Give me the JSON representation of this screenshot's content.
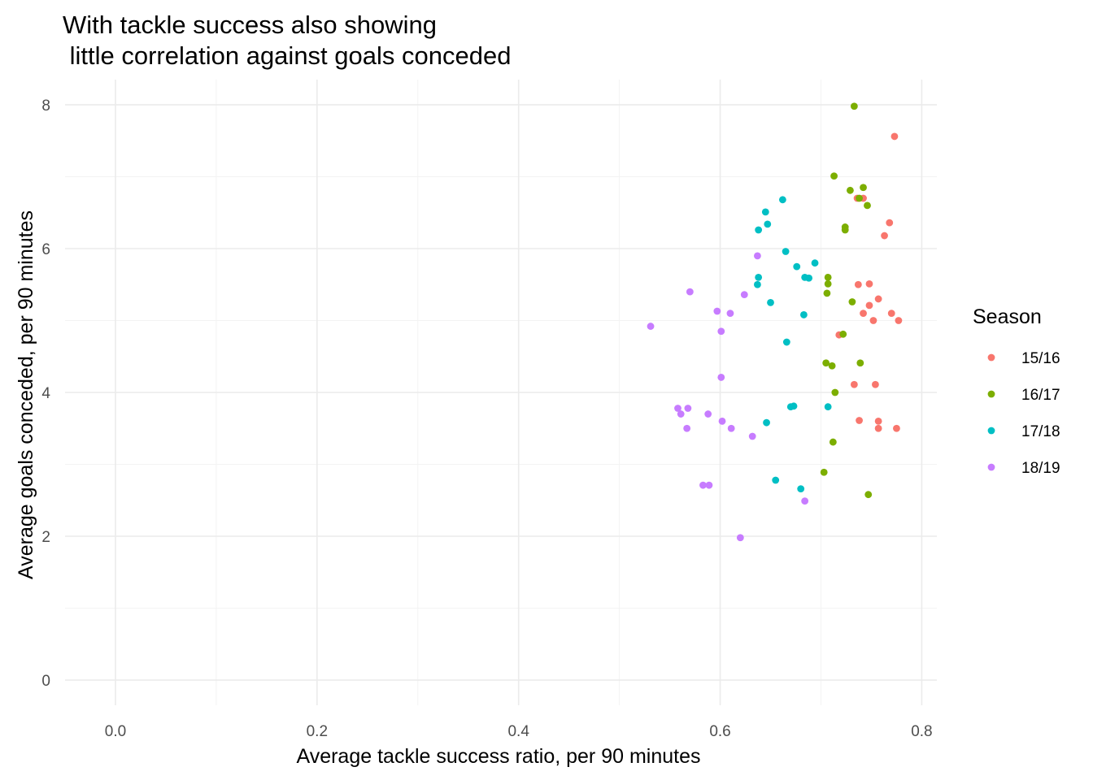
{
  "chart_data": {
    "type": "scatter",
    "title": [
      "With tackle success also showing",
      " little correlation against goals conceded"
    ],
    "xlabel": "Average tackle success ratio, per 90 minutes",
    "ylabel": "Average goals conceded, per 90 minutes",
    "xlim": [
      -0.05,
      0.815
    ],
    "ylim": [
      -0.35,
      8.35
    ],
    "x_ticks": [
      0.0,
      0.2,
      0.4,
      0.6,
      0.8
    ],
    "x_tick_labels": [
      "0.0",
      "0.2",
      "0.4",
      "0.6",
      "0.8"
    ],
    "y_ticks": [
      0,
      2,
      4,
      6,
      8
    ],
    "y_tick_labels": [
      "0",
      "2",
      "4",
      "6",
      "8"
    ],
    "grid": true,
    "legend": {
      "title": "Season",
      "position": "right"
    },
    "series": [
      {
        "name": "15/16",
        "color": "#F8766D",
        "points": [
          [
            0.773,
            7.56
          ],
          [
            0.736,
            6.7
          ],
          [
            0.742,
            6.7
          ],
          [
            0.768,
            6.36
          ],
          [
            0.763,
            6.18
          ],
          [
            0.737,
            5.5
          ],
          [
            0.748,
            5.51
          ],
          [
            0.757,
            5.3
          ],
          [
            0.748,
            5.21
          ],
          [
            0.742,
            5.1
          ],
          [
            0.752,
            5.0
          ],
          [
            0.77,
            5.1
          ],
          [
            0.777,
            5.0
          ],
          [
            0.718,
            4.8
          ],
          [
            0.733,
            4.11
          ],
          [
            0.754,
            4.11
          ],
          [
            0.738,
            3.61
          ],
          [
            0.757,
            3.6
          ],
          [
            0.757,
            3.5
          ],
          [
            0.775,
            3.5
          ]
        ]
      },
      {
        "name": "16/17",
        "color": "#7CAE00",
        "points": [
          [
            0.733,
            7.98
          ],
          [
            0.713,
            7.01
          ],
          [
            0.742,
            6.85
          ],
          [
            0.729,
            6.81
          ],
          [
            0.738,
            6.7
          ],
          [
            0.746,
            6.6
          ],
          [
            0.724,
            6.3
          ],
          [
            0.724,
            6.26
          ],
          [
            0.707,
            5.6
          ],
          [
            0.707,
            5.51
          ],
          [
            0.706,
            5.38
          ],
          [
            0.731,
            5.26
          ],
          [
            0.722,
            4.81
          ],
          [
            0.705,
            4.41
          ],
          [
            0.711,
            4.37
          ],
          [
            0.739,
            4.41
          ],
          [
            0.714,
            4.0
          ],
          [
            0.712,
            3.31
          ],
          [
            0.703,
            2.89
          ],
          [
            0.747,
            2.58
          ]
        ]
      },
      {
        "name": "17/18",
        "color": "#00BFC4",
        "points": [
          [
            0.662,
            6.68
          ],
          [
            0.645,
            6.51
          ],
          [
            0.647,
            6.34
          ],
          [
            0.638,
            6.26
          ],
          [
            0.665,
            5.96
          ],
          [
            0.694,
            5.8
          ],
          [
            0.676,
            5.75
          ],
          [
            0.684,
            5.6
          ],
          [
            0.688,
            5.59
          ],
          [
            0.638,
            5.6
          ],
          [
            0.637,
            5.5
          ],
          [
            0.65,
            5.25
          ],
          [
            0.683,
            5.08
          ],
          [
            0.666,
            4.7
          ],
          [
            0.67,
            3.8
          ],
          [
            0.673,
            3.81
          ],
          [
            0.707,
            3.8
          ],
          [
            0.646,
            3.58
          ],
          [
            0.655,
            2.78
          ],
          [
            0.68,
            2.66
          ]
        ]
      },
      {
        "name": "18/19",
        "color": "#C77CFF",
        "points": [
          [
            0.637,
            5.9
          ],
          [
            0.57,
            5.4
          ],
          [
            0.624,
            5.36
          ],
          [
            0.597,
            5.13
          ],
          [
            0.61,
            5.1
          ],
          [
            0.531,
            4.92
          ],
          [
            0.601,
            4.85
          ],
          [
            0.601,
            4.21
          ],
          [
            0.558,
            3.78
          ],
          [
            0.568,
            3.78
          ],
          [
            0.561,
            3.7
          ],
          [
            0.588,
            3.7
          ],
          [
            0.602,
            3.6
          ],
          [
            0.567,
            3.5
          ],
          [
            0.611,
            3.5
          ],
          [
            0.632,
            3.39
          ],
          [
            0.583,
            2.71
          ],
          [
            0.589,
            2.71
          ],
          [
            0.684,
            2.49
          ],
          [
            0.62,
            1.98
          ]
        ]
      }
    ]
  }
}
